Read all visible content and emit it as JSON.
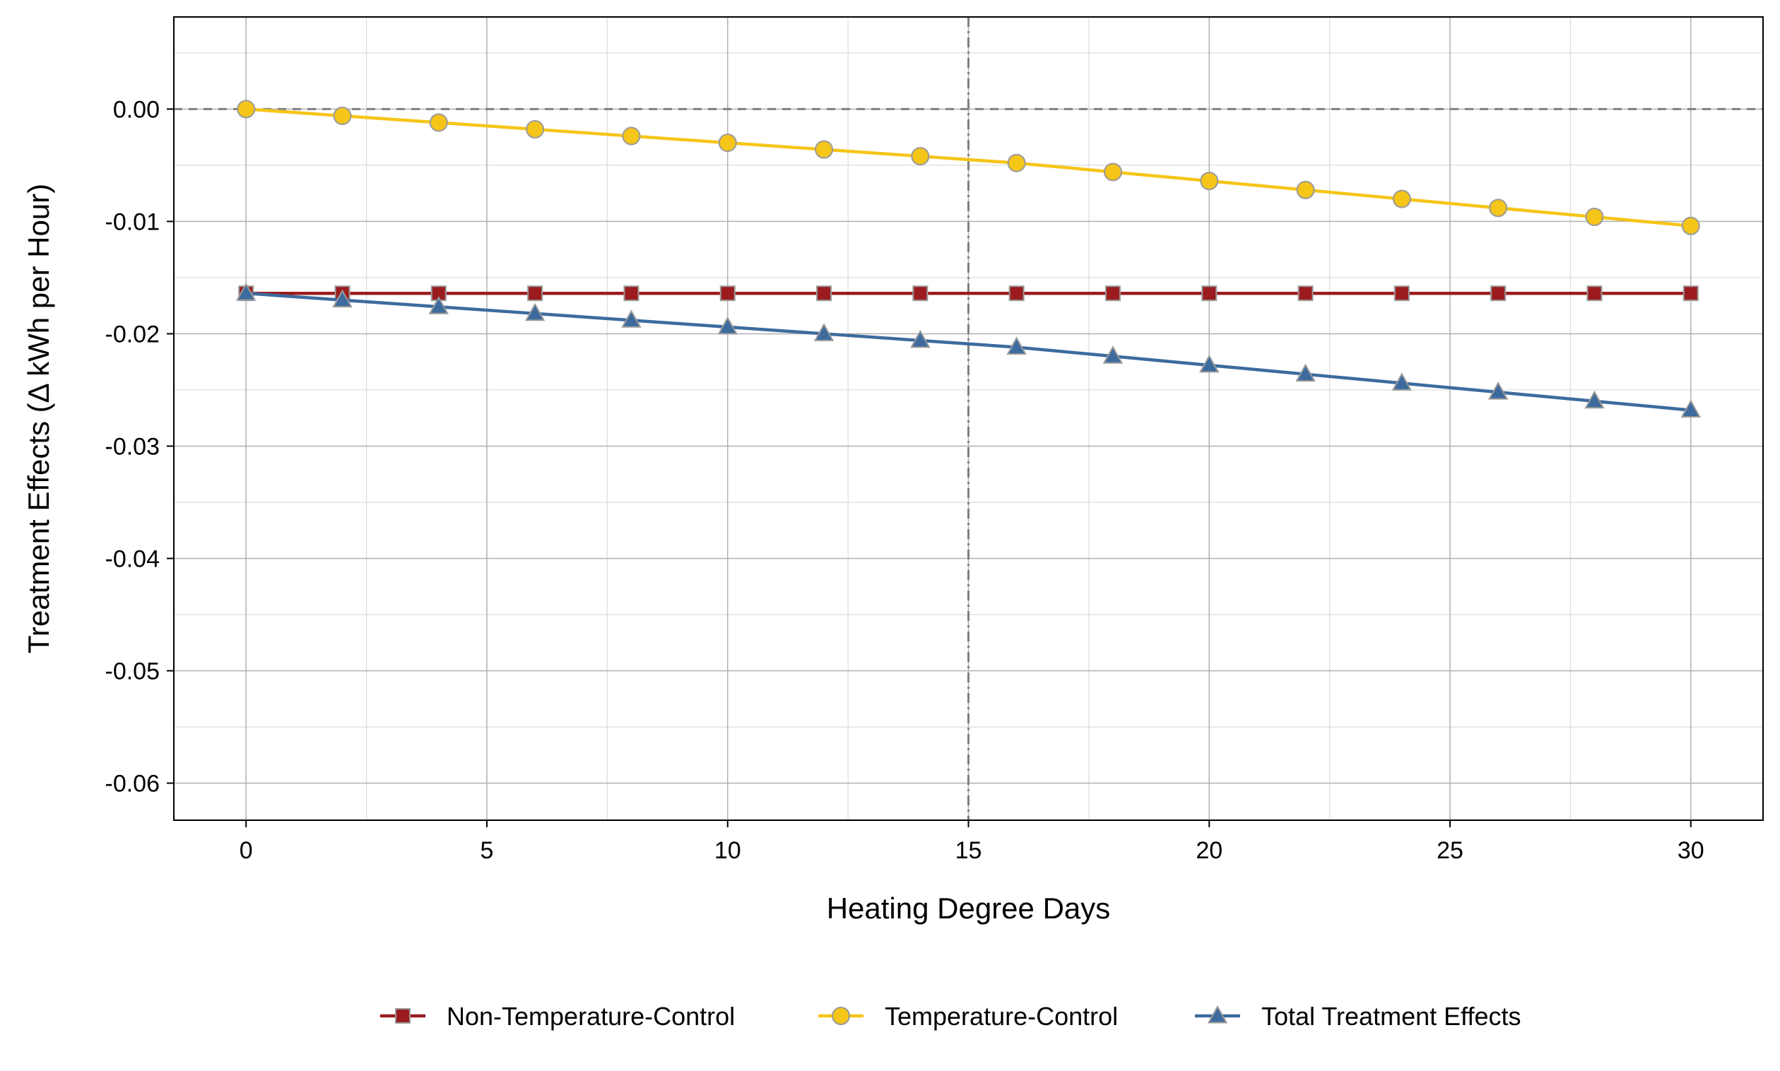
{
  "chart_data": {
    "type": "line",
    "title": "",
    "xlabel": "Heating Degree Days",
    "ylabel": "Treatment Effects  (Δ kWh per Hour)",
    "xlim": [
      -1.5,
      31.5
    ],
    "ylim": [
      -0.0633,
      0.0082
    ],
    "x_ticks": [
      0,
      5,
      10,
      15,
      20,
      25,
      30
    ],
    "x_tick_labels": [
      "0",
      "5",
      "10",
      "15",
      "20",
      "25",
      "30"
    ],
    "y_ticks": [
      0.0,
      -0.01,
      -0.02,
      -0.03,
      -0.04,
      -0.05,
      -0.06
    ],
    "y_tick_labels": [
      "0.00",
      "-0.01",
      "-0.02",
      "-0.03",
      "-0.04",
      "-0.05",
      "-0.06"
    ],
    "grid": true,
    "reference_lines": {
      "horizontal_y": 0.0,
      "vertical_x": 15
    },
    "legend_position": "bottom",
    "x": [
      0,
      2,
      4,
      6,
      8,
      10,
      12,
      14,
      16,
      18,
      20,
      22,
      24,
      26,
      28,
      30
    ],
    "series": [
      {
        "name": "Non-Temperature-Control",
        "marker": "square",
        "color": "#9B1B1E",
        "values": [
          -0.0164,
          -0.0164,
          -0.0164,
          -0.0164,
          -0.0164,
          -0.0164,
          -0.0164,
          -0.0164,
          -0.0164,
          -0.0164,
          -0.0164,
          -0.0164,
          -0.0164,
          -0.0164,
          -0.0164,
          -0.0164
        ]
      },
      {
        "name": "Temperature-Control",
        "marker": "circle",
        "color": "#F5C518",
        "values": [
          0.0,
          -0.0006,
          -0.0012,
          -0.0018,
          -0.0024,
          -0.003,
          -0.0036,
          -0.0042,
          -0.0048,
          -0.0056,
          -0.0064,
          -0.0072,
          -0.008,
          -0.0088,
          -0.0096,
          -0.0104
        ]
      },
      {
        "name": "Total Treatment Effects",
        "marker": "triangle",
        "color": "#3D6B9E",
        "values": [
          -0.0164,
          -0.017,
          -0.0176,
          -0.0182,
          -0.0188,
          -0.0194,
          -0.02,
          -0.0206,
          -0.0212,
          -0.022,
          -0.0228,
          -0.0236,
          -0.0244,
          -0.0252,
          -0.026,
          -0.0268
        ]
      }
    ]
  }
}
